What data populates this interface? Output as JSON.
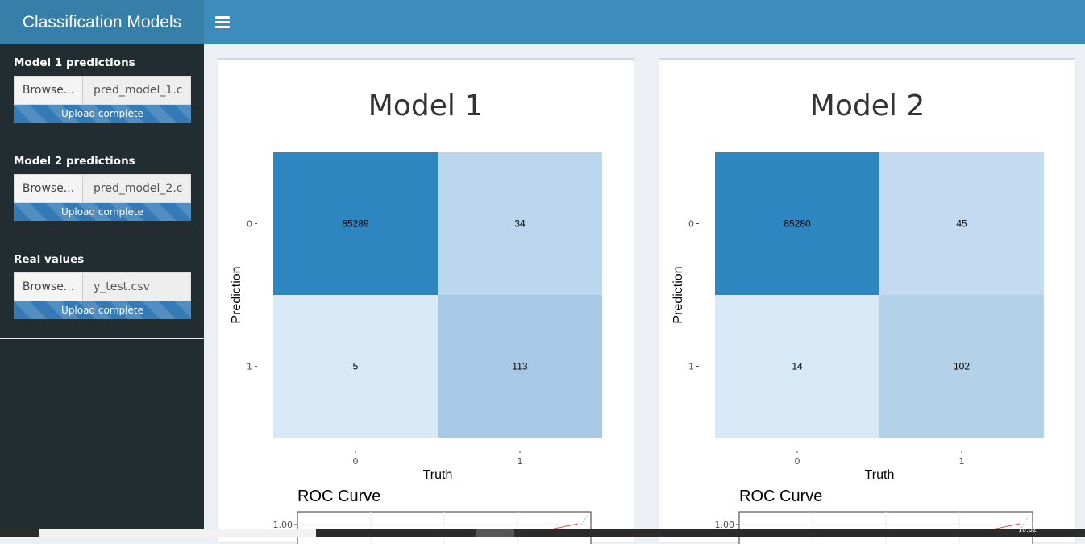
{
  "header": {
    "title": "Classification Models"
  },
  "sidebar": {
    "uploads": [
      {
        "label": "Model 1 predictions",
        "button": "Browse...",
        "filename": "pred_model_1.c",
        "status": "Upload complete"
      },
      {
        "label": "Model 2 predictions",
        "button": "Browse...",
        "filename": "pred_model_2.c",
        "status": "Upload complete"
      },
      {
        "label": "Real values",
        "button": "Browse...",
        "filename": "y_test.csv",
        "status": "Upload complete"
      }
    ]
  },
  "chart_data": [
    {
      "type": "heatmap",
      "title": "Model 1",
      "xlabel": "Truth",
      "ylabel": "Prediction",
      "x_categories": [
        "0",
        "1"
      ],
      "y_categories": [
        "0",
        "1"
      ],
      "cells": [
        {
          "truth": "0",
          "prediction": "0",
          "value": 85289
        },
        {
          "truth": "1",
          "prediction": "0",
          "value": 34
        },
        {
          "truth": "0",
          "prediction": "1",
          "value": 5
        },
        {
          "truth": "1",
          "prediction": "1",
          "value": 113
        }
      ],
      "colors": {
        "high": "#2e86c1",
        "mid": "#a8c9e6",
        "low": "#d7e8f6"
      }
    },
    {
      "type": "heatmap",
      "title": "Model 2",
      "xlabel": "Truth",
      "ylabel": "Prediction",
      "x_categories": [
        "0",
        "1"
      ],
      "y_categories": [
        "0",
        "1"
      ],
      "cells": [
        {
          "truth": "0",
          "prediction": "0",
          "value": 85280
        },
        {
          "truth": "1",
          "prediction": "0",
          "value": 45
        },
        {
          "truth": "0",
          "prediction": "1",
          "value": 14
        },
        {
          "truth": "1",
          "prediction": "1",
          "value": 102
        }
      ],
      "colors": {
        "high": "#2e86c1",
        "mid": "#b4d1ea",
        "low": "#d7e8f6"
      }
    }
  ],
  "roc": [
    {
      "title": "ROC Curve",
      "y_tick_top": "1.00"
    },
    {
      "title": "ROC Curve",
      "y_tick_top": "1.00"
    }
  ],
  "taskbar": {
    "clock": "10:02"
  }
}
